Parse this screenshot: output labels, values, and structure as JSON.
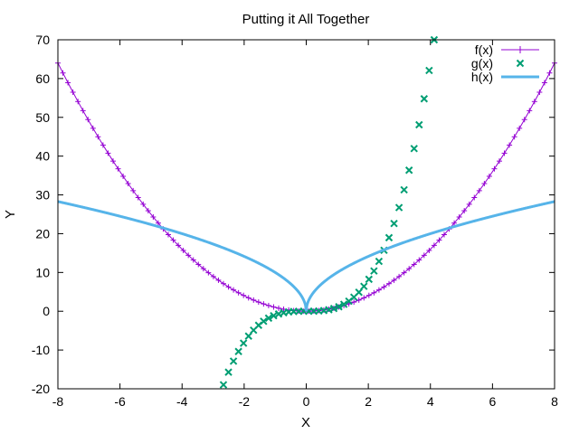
{
  "chart_data": {
    "type": "line",
    "title": "Putting it All Together",
    "xlabel": "X",
    "ylabel": "Y",
    "xlim": [
      -8,
      8
    ],
    "ylim": [
      -20,
      70
    ],
    "xticks": [
      -8,
      -6,
      -4,
      -2,
      0,
      2,
      4,
      6,
      8
    ],
    "yticks": [
      -20,
      -10,
      0,
      10,
      20,
      30,
      40,
      50,
      60,
      70
    ],
    "grid": false,
    "legend_position": "top-right",
    "series": [
      {
        "name": "f(x)",
        "expr": "x^2",
        "marker": "plus",
        "style": "linespoints",
        "color": "#9400d3"
      },
      {
        "name": "g(x)",
        "expr": "x^3",
        "marker": "cross",
        "style": "points",
        "color": "#009e73"
      },
      {
        "name": "h(x)",
        "expr": "10*|x|^(1/2)",
        "marker": "none",
        "style": "line",
        "color": "#56b4e9"
      }
    ]
  }
}
